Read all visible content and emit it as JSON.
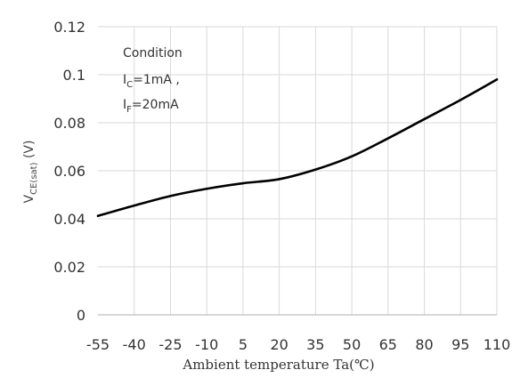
{
  "chart_data": {
    "type": "line",
    "title": "",
    "xlabel": "Ambient temperature Ta(℃)",
    "ylabel": {
      "main": "V",
      "sub": "CE(sat)",
      "unit": " (V)"
    },
    "x_ticks": [
      "-55",
      "-40",
      "-25",
      "-10",
      "5",
      "20",
      "35",
      "50",
      "65",
      "80",
      "95",
      "110"
    ],
    "y_ticks": [
      "0",
      "0.02",
      "0.04",
      "0.06",
      "0.08",
      "0.1",
      "0.12"
    ],
    "xlim": [
      -55,
      110
    ],
    "ylim": [
      0,
      0.12
    ],
    "grid": true,
    "legend": "none",
    "condition": {
      "title": "Condition",
      "lines": [
        {
          "main": "I",
          "sub": "C",
          "rest": "=1mA ,"
        },
        {
          "main": "I",
          "sub": "F",
          "rest": "=20mA"
        }
      ]
    },
    "series": [
      {
        "color": "#000000",
        "x": [
          -55,
          -40,
          -25,
          -10,
          5,
          20,
          35,
          50,
          65,
          80,
          95,
          110
        ],
        "y": [
          0.0412,
          0.0455,
          0.0495,
          0.0525,
          0.0548,
          0.0565,
          0.0605,
          0.066,
          0.0735,
          0.0815,
          0.0895,
          0.098
        ]
      }
    ],
    "colors": {
      "grid": "#d9d9d9",
      "axis": "#bfbfbf",
      "line": "#000000"
    }
  }
}
